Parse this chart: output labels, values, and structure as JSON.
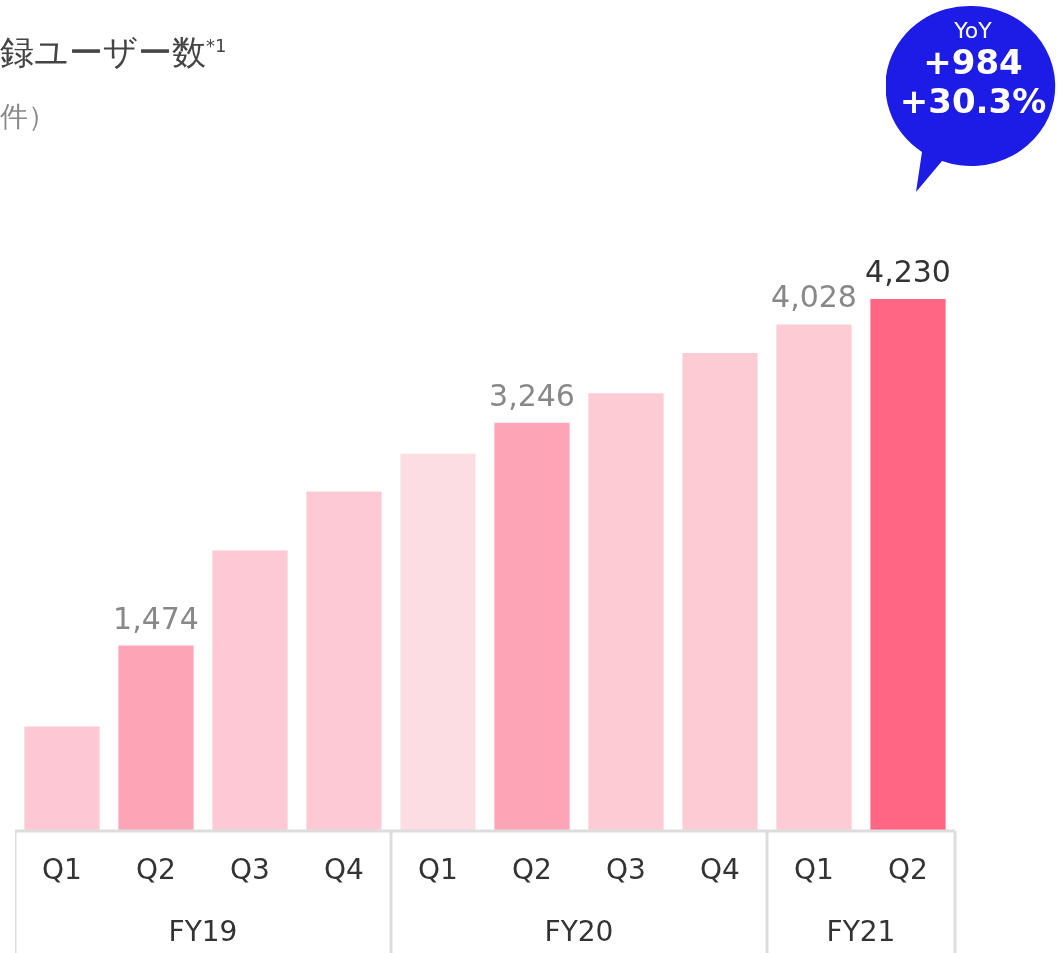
{
  "chart_data": {
    "type": "bar",
    "title": "録ユーザー数$^{*1}$",
    "subtitle": "件）",
    "categories": [
      "Q1",
      "Q2",
      "Q3",
      "Q4",
      "Q1",
      "Q2",
      "Q3",
      "Q4",
      "Q1",
      "Q2"
    ],
    "values": [
      830,
      1474,
      2230,
      2700,
      3000,
      3246,
      3480,
      3800,
      4028,
      4230
    ],
    "value_labels": [
      null,
      "1,474",
      null,
      null,
      null,
      "3,246",
      null,
      null,
      "4,028",
      "4,230"
    ],
    "colors": [
      "#fdc8d3",
      "#fda5b6",
      "#fdc9d4",
      "#fdc9d4",
      "#fddde4",
      "#fda5b6",
      "#fdcbd4",
      "#fdcbd4",
      "#fdcbd4",
      "#ff6684"
    ],
    "annotations": [
      "FY19",
      "FY20",
      "FY21",
      "YoY",
      "+984",
      "+30.3%"
    ]
  }
}
